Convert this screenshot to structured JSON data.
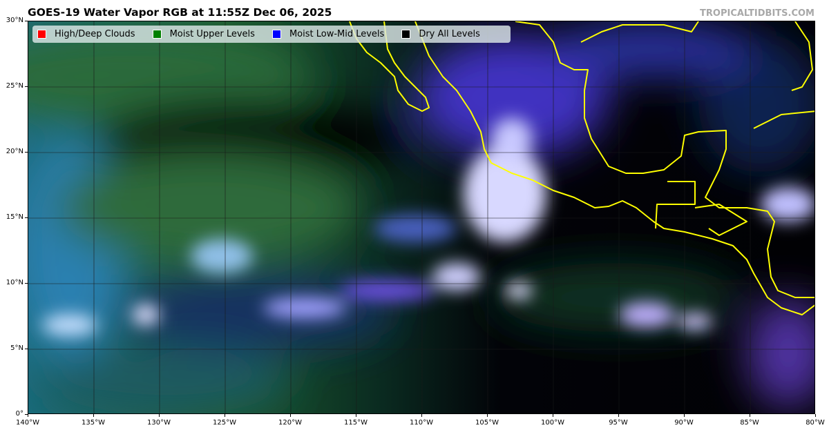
{
  "title": "GOES-19 Water Vapor RGB at 11:55Z Dec 06, 2025",
  "credit": "TROPICALTIDBITS.COM",
  "legend": [
    {
      "label": "High/Deep Clouds",
      "color": "#ff0000"
    },
    {
      "label": "Moist Upper Levels",
      "color": "#008000"
    },
    {
      "label": "Moist Low-Mid Levels",
      "color": "#0000ff"
    },
    {
      "label": "Dry All Levels",
      "color": "#000000"
    }
  ],
  "x_ticks": [
    "140°W",
    "135°W",
    "130°W",
    "125°W",
    "120°W",
    "115°W",
    "110°W",
    "105°W",
    "100°W",
    "95°W",
    "90°W",
    "85°W",
    "80°W"
  ],
  "y_ticks": [
    "30°N",
    "25°N",
    "20°N",
    "15°N",
    "10°N",
    "5°N",
    "0°"
  ],
  "coastline_color": "#ffff00"
}
